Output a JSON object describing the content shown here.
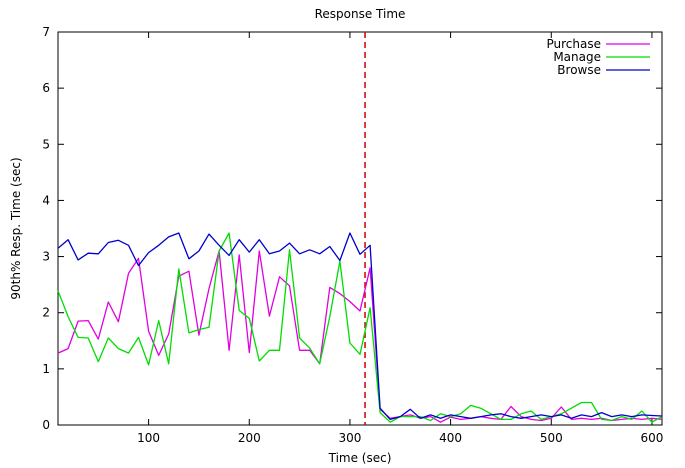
{
  "chart_data": {
    "type": "line",
    "title": "Response Time",
    "xlabel": "Time (sec)",
    "ylabel": "90th% Resp. Time (sec)",
    "xlim": [
      10,
      610
    ],
    "ylim": [
      0,
      7
    ],
    "x_ticks": [
      100,
      200,
      300,
      400,
      500,
      600
    ],
    "y_ticks": [
      0,
      1,
      2,
      3,
      4,
      5,
      6,
      7
    ],
    "legend_position": "top-right",
    "grid": false,
    "marker_line": {
      "x": 315,
      "color": "#cc0000",
      "style": "dashed"
    },
    "series": [
      {
        "name": "Purchase",
        "color": "#e000e0",
        "x": [
          10,
          20,
          30,
          40,
          50,
          60,
          70,
          80,
          90,
          100,
          110,
          120,
          130,
          140,
          150,
          160,
          170,
          180,
          190,
          200,
          210,
          220,
          230,
          240,
          250,
          260,
          270,
          280,
          290,
          300,
          310,
          320,
          330,
          340,
          350,
          360,
          370,
          380,
          390,
          400,
          410,
          420,
          430,
          440,
          450,
          460,
          470,
          480,
          490,
          500,
          510,
          520,
          530,
          540,
          550,
          560,
          570,
          580,
          590,
          600,
          610
        ],
        "values": [
          1.28,
          1.36,
          1.85,
          1.86,
          1.53,
          2.19,
          1.84,
          2.7,
          2.97,
          1.67,
          1.24,
          1.62,
          2.65,
          2.74,
          1.6,
          2.43,
          3.1,
          1.33,
          3.03,
          1.29,
          3.1,
          1.94,
          2.64,
          2.48,
          1.33,
          1.33,
          1.09,
          2.45,
          2.34,
          2.2,
          2.03,
          2.8,
          0.28,
          0.12,
          0.15,
          0.18,
          0.12,
          0.15,
          0.05,
          0.14,
          0.1,
          0.12,
          0.15,
          0.12,
          0.1,
          0.33,
          0.15,
          0.1,
          0.08,
          0.12,
          0.32,
          0.1,
          0.12,
          0.1,
          0.12,
          0.08,
          0.1,
          0.12,
          0.1,
          0.12,
          0.1
        ]
      },
      {
        "name": "Manage",
        "color": "#00dd00",
        "x": [
          10,
          20,
          30,
          40,
          50,
          60,
          70,
          80,
          90,
          100,
          110,
          120,
          130,
          140,
          150,
          160,
          170,
          180,
          190,
          200,
          210,
          220,
          230,
          240,
          250,
          260,
          270,
          280,
          290,
          300,
          310,
          320,
          330,
          340,
          350,
          360,
          370,
          380,
          390,
          400,
          410,
          420,
          430,
          440,
          450,
          460,
          470,
          480,
          490,
          500,
          510,
          520,
          530,
          540,
          550,
          560,
          570,
          580,
          590,
          600,
          610
        ],
        "values": [
          2.39,
          1.93,
          1.56,
          1.55,
          1.13,
          1.55,
          1.36,
          1.28,
          1.56,
          1.07,
          1.86,
          1.09,
          2.78,
          1.64,
          1.7,
          1.74,
          3.1,
          3.42,
          2.04,
          1.9,
          1.14,
          1.33,
          1.33,
          3.12,
          1.55,
          1.37,
          1.09,
          1.93,
          2.92,
          1.46,
          1.26,
          2.09,
          0.22,
          0.05,
          0.15,
          0.15,
          0.15,
          0.08,
          0.2,
          0.15,
          0.2,
          0.35,
          0.3,
          0.2,
          0.1,
          0.1,
          0.2,
          0.25,
          0.1,
          0.15,
          0.2,
          0.3,
          0.4,
          0.4,
          0.1,
          0.08,
          0.15,
          0.1,
          0.25,
          0.05,
          0.15
        ]
      },
      {
        "name": "Browse",
        "color": "#0000cc",
        "x": [
          10,
          20,
          30,
          40,
          50,
          60,
          70,
          80,
          90,
          100,
          110,
          120,
          130,
          140,
          150,
          160,
          170,
          180,
          190,
          200,
          210,
          220,
          230,
          240,
          250,
          260,
          270,
          280,
          290,
          300,
          310,
          320,
          330,
          340,
          350,
          360,
          370,
          380,
          390,
          400,
          410,
          420,
          430,
          440,
          450,
          460,
          470,
          480,
          490,
          500,
          510,
          520,
          530,
          540,
          550,
          560,
          570,
          580,
          590,
          600,
          610
        ],
        "values": [
          3.15,
          3.3,
          2.94,
          3.06,
          3.05,
          3.25,
          3.29,
          3.2,
          2.84,
          3.07,
          3.2,
          3.35,
          3.42,
          2.96,
          3.1,
          3.4,
          3.2,
          3.02,
          3.3,
          3.08,
          3.3,
          3.05,
          3.1,
          3.24,
          3.05,
          3.12,
          3.05,
          3.18,
          2.93,
          3.42,
          3.04,
          3.2,
          0.3,
          0.1,
          0.15,
          0.28,
          0.12,
          0.18,
          0.12,
          0.18,
          0.15,
          0.12,
          0.15,
          0.18,
          0.2,
          0.15,
          0.12,
          0.15,
          0.18,
          0.15,
          0.18,
          0.12,
          0.18,
          0.15,
          0.22,
          0.15,
          0.18,
          0.15,
          0.18,
          0.17,
          0.16
        ]
      }
    ]
  }
}
